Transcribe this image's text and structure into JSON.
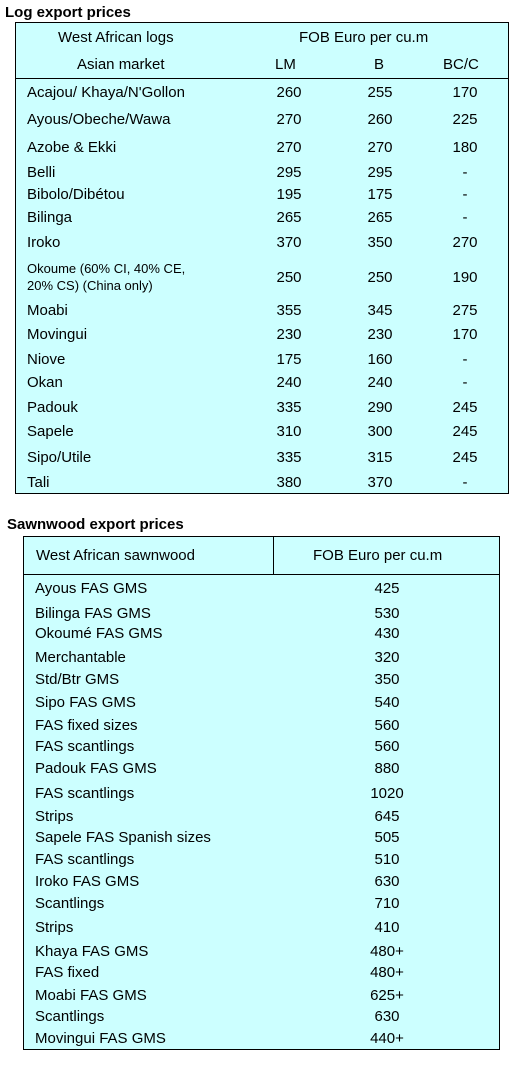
{
  "log_section": {
    "title": "Log export prices",
    "header": {
      "col1_top": "West African logs",
      "col1_bottom": "Asian market",
      "price_group": "FOB Euro per cu.m",
      "col_lm": "LM",
      "col_b": "B",
      "col_bcc": "BC/C"
    },
    "rows": [
      {
        "name": "Acajou/ Khaya/N'Gollon",
        "lm": "260",
        "b": "255",
        "bcc": "170"
      },
      {
        "name": "Ayous/Obeche/Wawa",
        "lm": "270",
        "b": "260",
        "bcc": "225"
      },
      {
        "name": "Azobe & Ekki",
        "lm": "270",
        "b": "270",
        "bcc": "180"
      },
      {
        "name": "Belli",
        "lm": "295",
        "b": "295",
        "bcc": "-"
      },
      {
        "name": "Bibolo/Dibétou",
        "lm": "195",
        "b": "175",
        "bcc": "-"
      },
      {
        "name": "Bilinga",
        "lm": "265",
        "b": "265",
        "bcc": "-"
      },
      {
        "name": "Iroko",
        "lm": "370",
        "b": "350",
        "bcc": "270"
      },
      {
        "name": "Okoume (60% CI, 40% CE,",
        "name2": "20% CS) (China only)",
        "lm": "250",
        "b": "250",
        "bcc": "190"
      },
      {
        "name": "Moabi",
        "lm": "355",
        "b": "345",
        "bcc": "275"
      },
      {
        "name": "Movingui",
        "lm": "230",
        "b": "230",
        "bcc": "170"
      },
      {
        "name": "Niove",
        "lm": "175",
        "b": "160",
        "bcc": "-"
      },
      {
        "name": "Okan",
        "lm": "240",
        "b": "240",
        "bcc": "-"
      },
      {
        "name": "Padouk",
        "lm": "335",
        "b": "290",
        "bcc": "245"
      },
      {
        "name": "Sapele",
        "lm": "310",
        "b": "300",
        "bcc": "245"
      },
      {
        "name": "Sipo/Utile",
        "lm": "335",
        "b": "315",
        "bcc": "245"
      },
      {
        "name": "Tali",
        "lm": "380",
        "b": "370",
        "bcc": "-"
      }
    ]
  },
  "sawn_section": {
    "title": "Sawnwood export prices",
    "header": {
      "col1": "West African sawnwood",
      "col2": "FOB Euro per cu.m"
    },
    "rows": [
      {
        "name": "Ayous FAS GMS",
        "price": "425"
      },
      {
        "name": "Bilinga FAS GMS",
        "price": "530"
      },
      {
        "name": "Okoumé FAS GMS",
        "price": "430"
      },
      {
        "name": "Merchantable",
        "price": "320"
      },
      {
        "name": "Std/Btr GMS",
        "price": "350"
      },
      {
        "name": "Sipo FAS GMS",
        "price": "540"
      },
      {
        "name": "FAS fixed sizes",
        "price": "560"
      },
      {
        "name": "FAS scantlings",
        "price": "560"
      },
      {
        "name": "Padouk FAS GMS",
        "price": "880"
      },
      {
        "name": "FAS scantlings",
        "price": "1020"
      },
      {
        "name": "Strips",
        "price": "645"
      },
      {
        "name": "Sapele FAS Spanish sizes",
        "price": "505"
      },
      {
        "name": "FAS scantlings",
        "price": "510"
      },
      {
        "name": "Iroko FAS GMS",
        "price": "630"
      },
      {
        "name": "Scantlings",
        "price": "710"
      },
      {
        "name": "Strips",
        "price": "410"
      },
      {
        "name": "Khaya FAS GMS",
        "price": "480+"
      },
      {
        "name": "FAS fixed",
        "price": "480+"
      },
      {
        "name": "Moabi FAS GMS",
        "price": "625+"
      },
      {
        "name": "Scantlings",
        "price": "630"
      },
      {
        "name": "Movingui FAS GMS",
        "price": "440+"
      }
    ]
  }
}
